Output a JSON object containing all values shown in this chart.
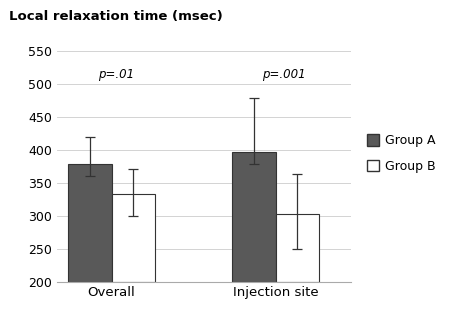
{
  "categories": [
    "Overall",
    "Injection site"
  ],
  "group_a_values": [
    378,
    397
  ],
  "group_b_values": [
    333,
    302
  ],
  "group_a_errors_upper": [
    42,
    82
  ],
  "group_a_errors_lower": [
    18,
    18
  ],
  "group_b_errors_upper": [
    38,
    62
  ],
  "group_b_errors_lower": [
    33,
    52
  ],
  "group_a_color": "#595959",
  "group_b_color": "#ffffff",
  "group_a_label": "Group A",
  "group_b_label": "Group B",
  "title": "Local relaxation time (msec)",
  "ylim": [
    200,
    550
  ],
  "yticks": [
    200,
    250,
    300,
    350,
    400,
    450,
    500,
    550
  ],
  "p_values": [
    "p=.01",
    "p=.001"
  ],
  "bar_width": 0.32,
  "group_centers": [
    1.0,
    2.2
  ],
  "edge_color": "#333333"
}
